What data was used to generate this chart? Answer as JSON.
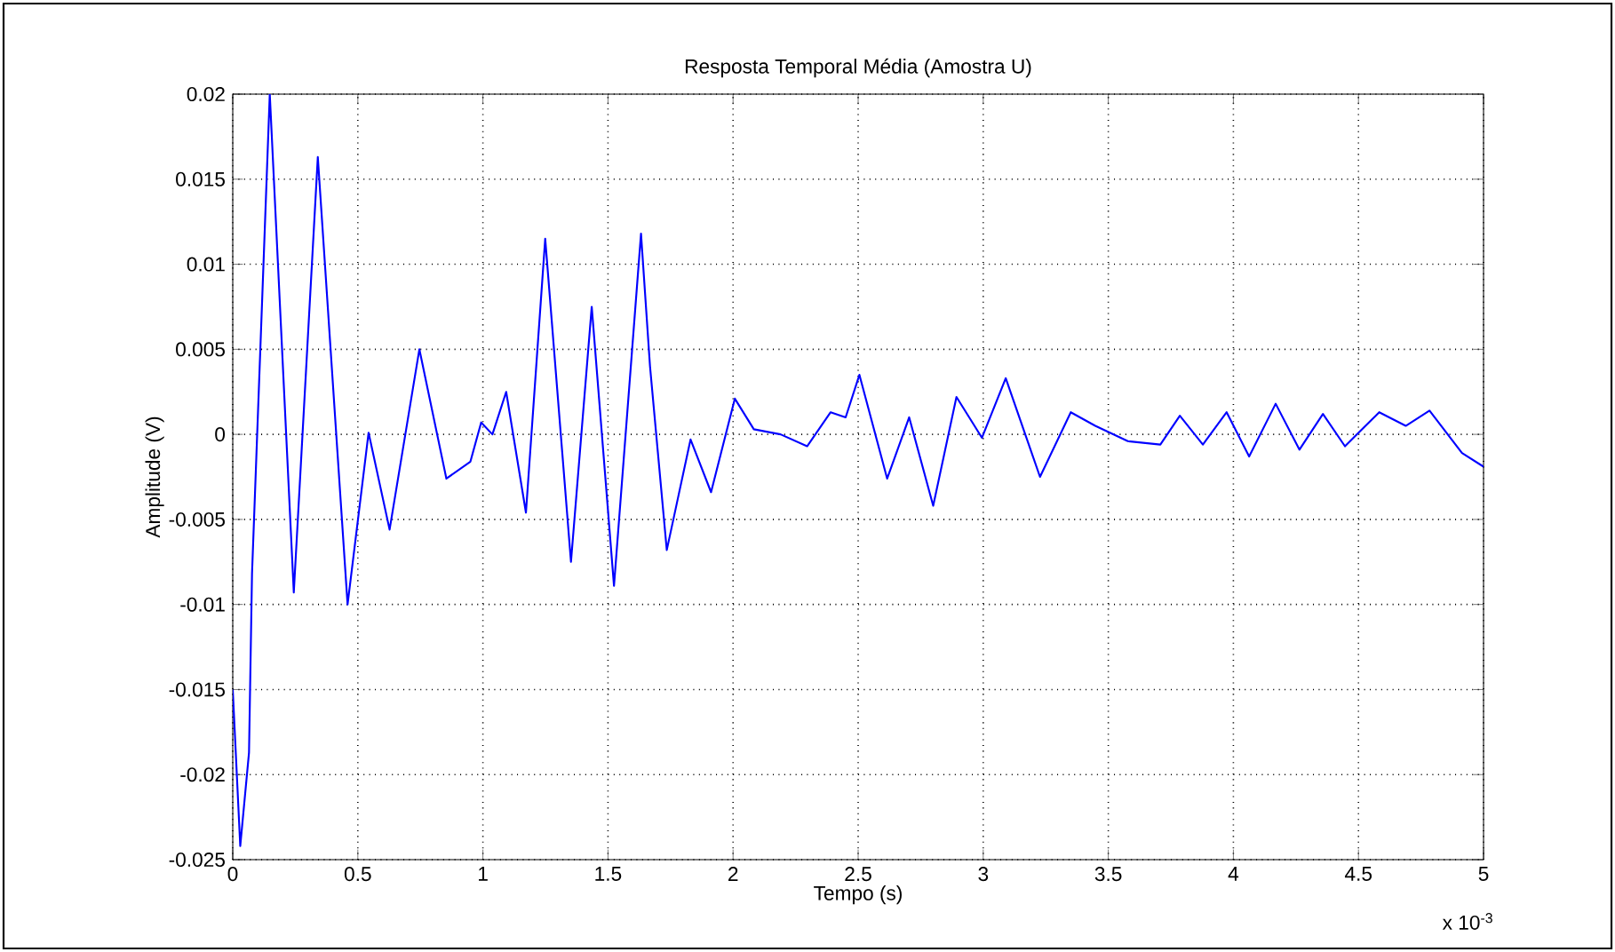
{
  "chart_data": {
    "type": "line",
    "title": "Resposta Temporal Média (Amostra U)",
    "xlabel": "Tempo (s)",
    "ylabel": "Amplitude (V)",
    "annotations": [
      "x 10$^{-3}$"
    ],
    "xlim": [
      0,
      5
    ],
    "xticks": [
      0,
      0.5,
      1,
      1.5,
      2,
      2.5,
      3,
      3.5,
      4,
      4.5,
      5
    ],
    "ylim": [
      -0.025,
      0.02
    ],
    "yticks": [
      -0.025,
      -0.02,
      -0.015,
      -0.01,
      -0.005,
      0,
      0.005,
      0.01,
      0.015,
      0.02
    ],
    "grid": true,
    "marker": "none",
    "line_style": "solid",
    "series": [
      {
        "color": "#0000ff",
        "x": [
          0,
          0.03,
          0.065,
          0.077,
          0.148,
          0.244,
          0.34,
          0.459,
          0.543,
          0.627,
          0.746,
          0.854,
          0.95,
          0.993,
          1.038,
          1.093,
          1.172,
          1.249,
          1.352,
          1.435,
          1.524,
          1.632,
          1.668,
          1.735,
          1.83,
          1.912,
          2.007,
          2.083,
          2.19,
          2.296,
          2.39,
          2.45,
          2.505,
          2.616,
          2.704,
          2.8,
          2.893,
          2.995,
          3.09,
          3.227,
          3.35,
          3.448,
          3.578,
          3.708,
          3.786,
          3.878,
          3.973,
          4.063,
          4.169,
          4.264,
          4.358,
          4.446,
          4.583,
          4.689,
          4.784,
          4.914,
          5.0
        ],
        "values": [
          -0.015,
          -0.0242,
          -0.0187,
          -0.0082,
          0.02,
          -0.0093,
          0.0163,
          -0.01,
          0.0001,
          -0.0056,
          0.005,
          -0.0026,
          -0.0016,
          0.0007,
          0.0,
          0.0025,
          -0.0046,
          0.0115,
          -0.0075,
          0.0075,
          -0.0089,
          0.0118,
          0.004,
          -0.0068,
          -0.0003,
          -0.0034,
          0.0021,
          0.0003,
          0.0,
          -0.0007,
          0.0013,
          0.001,
          0.0035,
          -0.0026,
          0.001,
          -0.0042,
          0.0022,
          -0.0002,
          0.0033,
          -0.0025,
          0.0013,
          0.0005,
          -0.0004,
          -0.0006,
          0.0011,
          -0.0006,
          0.0013,
          -0.0013,
          0.0018,
          -0.0009,
          0.0012,
          -0.0007,
          0.0013,
          0.0005,
          0.0014,
          -0.0011,
          -0.0019
        ]
      }
    ]
  }
}
